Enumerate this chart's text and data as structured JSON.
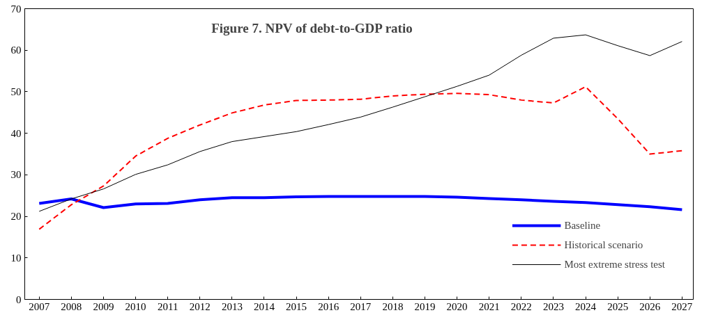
{
  "chart_data": {
    "type": "line",
    "title": "Figure 7. NPV of debt-to-GDP ratio",
    "categories": [
      "2007",
      "2008",
      "2009",
      "2010",
      "2011",
      "2012",
      "2013",
      "2014",
      "2015",
      "2016",
      "2017",
      "2018",
      "2019",
      "2020",
      "2021",
      "2022",
      "2023",
      "2024",
      "2025",
      "2026",
      "2027"
    ],
    "series": [
      {
        "name": "Baseline",
        "color": "#0000ff",
        "line_style": "solid",
        "values": [
          23.1,
          24.2,
          22.1,
          23.0,
          23.1,
          24.0,
          24.5,
          24.5,
          24.7,
          24.8,
          24.8,
          24.8,
          24.8,
          24.6,
          24.3,
          24.0,
          23.6,
          23.3,
          22.8,
          22.3,
          21.6
        ]
      },
      {
        "name": "Historical scenario",
        "color": "#ff0000",
        "line_style": "dashed",
        "values": [
          16.9,
          22.8,
          27.3,
          34.5,
          38.8,
          42.0,
          44.9,
          46.8,
          47.9,
          48.0,
          48.2,
          49.0,
          49.4,
          49.6,
          49.3,
          48.0,
          47.3,
          51.2,
          43.5,
          35.0,
          35.8
        ]
      },
      {
        "name": "Most extreme stress test",
        "color": "#000000",
        "line_style": "solid",
        "values": [
          21.2,
          24.2,
          26.6,
          30.1,
          32.4,
          35.6,
          38.0,
          39.2,
          40.4,
          42.1,
          43.9,
          46.3,
          48.8,
          51.3,
          54.0,
          58.8,
          62.9,
          63.7,
          61.1,
          58.7,
          62.1
        ]
      }
    ],
    "ylim": [
      0,
      70
    ],
    "yticks": [
      0,
      10,
      20,
      30,
      40,
      50,
      60,
      70
    ],
    "grid": false,
    "legend": "bottom right",
    "marker": "none"
  }
}
